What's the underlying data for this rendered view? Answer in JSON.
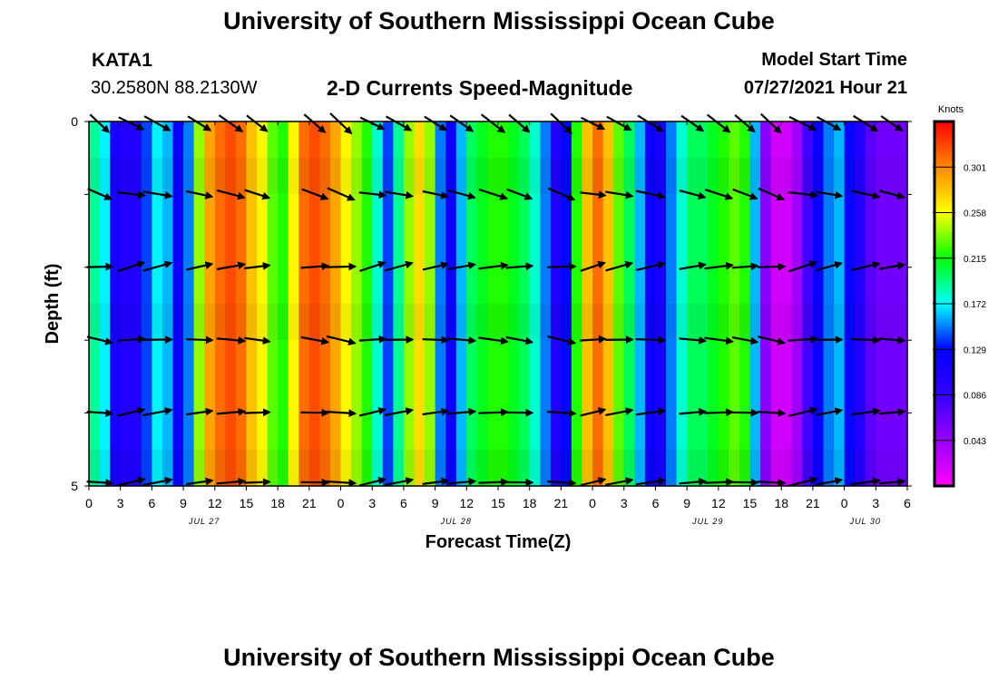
{
  "header": {
    "title_top": "University of Southern Mississippi Ocean Cube",
    "title_bottom": "University of Southern Mississippi Ocean Cube",
    "station_id": "KATA1",
    "station_coords": "30.2580N  88.2130W",
    "plot_title": "2-D Currents Speed-Magnitude",
    "model_label": "Model Start Time",
    "model_time": "07/27/2021 Hour 21"
  },
  "chart_data": {
    "type": "heatmap",
    "title": "2-D Currents Speed-Magnitude",
    "xlabel": "Forecast Time(Z)",
    "ylabel": "Depth (ft)",
    "colorbar_label": "Knots",
    "colorbar_ticks": [
      "0.301",
      "0.258",
      "0.215",
      "0.172",
      "0.129",
      "0.086",
      "0.043"
    ],
    "colorbar_range": [
      0,
      0.344
    ],
    "x_tick_labels": [
      "0",
      "3",
      "6",
      "9",
      "12",
      "15",
      "18",
      "21",
      "0",
      "3",
      "6",
      "9",
      "12",
      "15",
      "18",
      "21",
      "0",
      "3",
      "6",
      "9",
      "12",
      "15",
      "18",
      "21",
      "0",
      "3",
      "6"
    ],
    "date_labels": [
      {
        "label": "JUL 27",
        "hour_index": 11
      },
      {
        "label": "JUL 28",
        "hour_index": 35
      },
      {
        "label": "JUL 29",
        "hour_index": 59
      },
      {
        "label": "JUL 30",
        "hour_index": 74
      }
    ],
    "x_range_hours": [
      0,
      78
    ],
    "y_tick_labels": [
      "0",
      "5"
    ],
    "y_range_ft": [
      0,
      5
    ],
    "depth_levels_ft": [
      0,
      1,
      2,
      3,
      4,
      5
    ],
    "speed_profile": [
      {
        "hour": 0,
        "knots": 0.19
      },
      {
        "hour": 1,
        "knots": 0.17
      },
      {
        "hour": 2,
        "knots": 0.11
      },
      {
        "hour": 3,
        "knots": 0.1
      },
      {
        "hour": 4,
        "knots": 0.1
      },
      {
        "hour": 5,
        "knots": 0.14
      },
      {
        "hour": 6,
        "knots": 0.17
      },
      {
        "hour": 7,
        "knots": 0.16
      },
      {
        "hour": 8,
        "knots": 0.12
      },
      {
        "hour": 9,
        "knots": 0.15
      },
      {
        "hour": 10,
        "knots": 0.24
      },
      {
        "hour": 11,
        "knots": 0.29
      },
      {
        "hour": 12,
        "knots": 0.31
      },
      {
        "hour": 13,
        "knots": 0.32
      },
      {
        "hour": 14,
        "knots": 0.31
      },
      {
        "hour": 15,
        "knots": 0.28
      },
      {
        "hour": 16,
        "knots": 0.26
      },
      {
        "hour": 17,
        "knots": 0.23
      },
      {
        "hour": 18,
        "knots": 0.22
      },
      {
        "hour": 19,
        "knots": 0.26
      },
      {
        "hour": 20,
        "knots": 0.31
      },
      {
        "hour": 21,
        "knots": 0.32
      },
      {
        "hour": 22,
        "knots": 0.31
      },
      {
        "hour": 23,
        "knots": 0.29
      },
      {
        "hour": 24,
        "knots": 0.26
      },
      {
        "hour": 25,
        "knots": 0.24
      },
      {
        "hour": 26,
        "knots": 0.22
      },
      {
        "hour": 27,
        "knots": 0.18
      },
      {
        "hour": 28,
        "knots": 0.14
      },
      {
        "hour": 29,
        "knots": 0.19
      },
      {
        "hour": 30,
        "knots": 0.24
      },
      {
        "hour": 31,
        "knots": 0.27
      },
      {
        "hour": 32,
        "knots": 0.24
      },
      {
        "hour": 33,
        "knots": 0.15
      },
      {
        "hour": 34,
        "knots": 0.12
      },
      {
        "hour": 35,
        "knots": 0.16
      },
      {
        "hour": 36,
        "knots": 0.2
      },
      {
        "hour": 37,
        "knots": 0.21
      },
      {
        "hour": 38,
        "knots": 0.22
      },
      {
        "hour": 39,
        "knots": 0.22
      },
      {
        "hour": 40,
        "knots": 0.21
      },
      {
        "hour": 41,
        "knots": 0.2
      },
      {
        "hour": 42,
        "knots": 0.18
      },
      {
        "hour": 43,
        "knots": 0.15
      },
      {
        "hour": 44,
        "knots": 0.1
      },
      {
        "hour": 45,
        "knots": 0.13
      },
      {
        "hour": 46,
        "knots": 0.22
      },
      {
        "hour": 47,
        "knots": 0.28
      },
      {
        "hour": 48,
        "knots": 0.31
      },
      {
        "hour": 49,
        "knots": 0.28
      },
      {
        "hour": 50,
        "knots": 0.23
      },
      {
        "hour": 51,
        "knots": 0.2
      },
      {
        "hour": 52,
        "knots": 0.16
      },
      {
        "hour": 53,
        "knots": 0.12
      },
      {
        "hour": 54,
        "knots": 0.11
      },
      {
        "hour": 55,
        "knots": 0.15
      },
      {
        "hour": 56,
        "knots": 0.18
      },
      {
        "hour": 57,
        "knots": 0.2
      },
      {
        "hour": 58,
        "knots": 0.2
      },
      {
        "hour": 59,
        "knots": 0.21
      },
      {
        "hour": 60,
        "knots": 0.22
      },
      {
        "hour": 61,
        "knots": 0.23
      },
      {
        "hour": 62,
        "knots": 0.22
      },
      {
        "hour": 63,
        "knots": 0.16
      },
      {
        "hour": 64,
        "knots": 0.05
      },
      {
        "hour": 65,
        "knots": 0.02
      },
      {
        "hour": 66,
        "knots": 0.02
      },
      {
        "hour": 67,
        "knots": 0.04
      },
      {
        "hour": 68,
        "knots": 0.08
      },
      {
        "hour": 69,
        "knots": 0.12
      },
      {
        "hour": 70,
        "knots": 0.15
      },
      {
        "hour": 71,
        "knots": 0.16
      },
      {
        "hour": 72,
        "knots": 0.13
      },
      {
        "hour": 73,
        "knots": 0.1
      },
      {
        "hour": 74,
        "knots": 0.07
      },
      {
        "hour": 75,
        "knots": 0.06
      },
      {
        "hour": 76,
        "knots": 0.06
      },
      {
        "hour": 77,
        "knots": 0.06
      }
    ],
    "arrow_hours": [
      1,
      4,
      6.5,
      10.5,
      13.5,
      16,
      21.5,
      24,
      27,
      29.5,
      33,
      35.5,
      38.5,
      41,
      45,
      48,
      50.5,
      53.5,
      57.5,
      60,
      62.5,
      65,
      68,
      70.5,
      74,
      76.5
    ],
    "arrow_depths_ft": [
      0,
      1,
      2,
      3,
      4,
      5
    ],
    "arrow_directions_deg": [
      -35,
      -15,
      10,
      -5,
      5,
      5
    ]
  }
}
